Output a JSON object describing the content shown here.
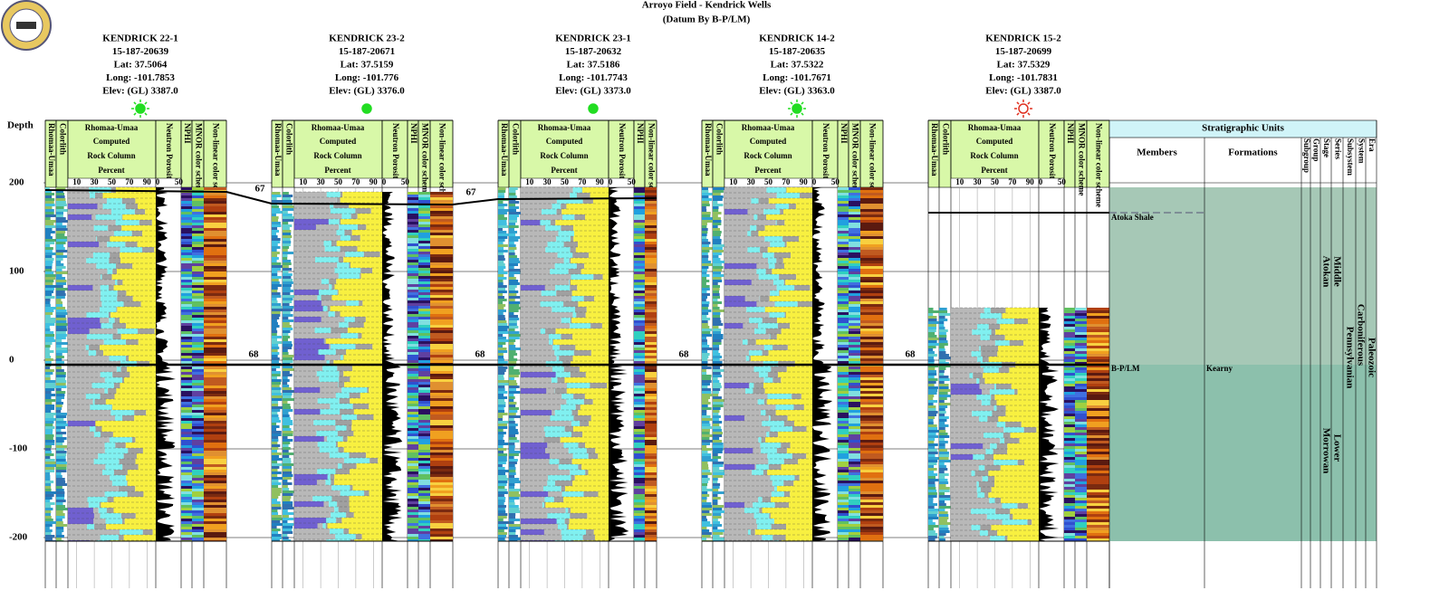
{
  "header": {
    "title": "Arroyo Field - Kendrick Wells",
    "subtitle": "(Datum By B-P/LM)"
  },
  "depth": {
    "label": "Depth",
    "ticks": [
      200,
      100,
      0,
      -100,
      -200
    ]
  },
  "rock_column": {
    "title": "Rhomaa-Umaa",
    "lines": [
      "Computed",
      "Rock Column",
      "Percent"
    ],
    "ticks": [
      10,
      30,
      50,
      70,
      90
    ]
  },
  "neutron": {
    "ticks": [
      0,
      50
    ]
  },
  "wells": [
    {
      "name": "KENDRICK 22-1",
      "api": "15-187-20639",
      "lat": "Lat: 37.5064",
      "long": "Long: -101.7853",
      "elev": "Elev: (GL) 3387.0",
      "left_tracks": [
        "Rhomaa-Umaa",
        "Colorlith"
      ],
      "right_tracks": [
        "Neutron Porosity",
        "NPHI",
        "MNOR color scheme",
        "Non-linear color scheme"
      ]
    },
    {
      "name": "KENDRICK 23-2",
      "api": "15-187-20671",
      "lat": "Lat: 37.5159",
      "long": "Long: -101.776",
      "elev": "Elev: (GL) 3376.0",
      "left_tracks": [
        "Rhomaa-Umaa",
        "Colorlith"
      ],
      "right_tracks": [
        "Neutron Porosity",
        "NPHI",
        "MNOR color scheme",
        "Non-linear color scheme"
      ]
    },
    {
      "name": "KENDRICK 23-1",
      "api": "15-187-20632",
      "lat": "Lat: 37.5186",
      "long": "Long: -101.7743",
      "elev": "Elev: (GL) 3373.0",
      "left_tracks": [
        "Rhomaa-Umaa",
        "Colorlith"
      ],
      "right_tracks": [
        "Neutron Porosity",
        "NPHI",
        "Non-linear color scheme"
      ]
    },
    {
      "name": "KENDRICK 14-2",
      "api": "15-187-20635",
      "lat": "Lat: 37.5322",
      "long": "Long: -101.7671",
      "elev": "Elev: (GL) 3363.0",
      "left_tracks": [
        "Rhomaa-Umaa",
        "Colorlith"
      ],
      "right_tracks": [
        "Neutron Porosity",
        "NPHI",
        "MNOR color scheme",
        "Non-linear color scheme"
      ]
    },
    {
      "name": "KENDRICK 15-2",
      "api": "15-187-20699",
      "lat": "Lat: 37.5329",
      "long": "Long: -101.7831",
      "elev": "Elev: (GL) 3387.0",
      "left_tracks": [
        "Rhomaa-Umaa",
        "Colorlith"
      ],
      "right_tracks": [
        "Neutron Porosity",
        "NPHI",
        "MNOR color scheme",
        "Non-linear color scheme"
      ]
    }
  ],
  "markers": [
    "67",
    "67",
    "68",
    "68",
    "68",
    "68"
  ],
  "strat": {
    "title": "Stratigraphic Units",
    "columns": [
      "Members",
      "Formations",
      "Subgroup",
      "Group",
      "Stage",
      "Series",
      "Subsystem",
      "System",
      "Era"
    ],
    "members": [
      "Atoka Shale",
      "B-P/LM"
    ],
    "formations": [
      "Kearny"
    ],
    "stages": [
      "Atokan",
      "Morrowan"
    ],
    "series": [
      "Middle",
      "Lower"
    ],
    "subsystem": "Pennsylvanian",
    "system": "Carboniferous",
    "era": "Paleozoic"
  }
}
